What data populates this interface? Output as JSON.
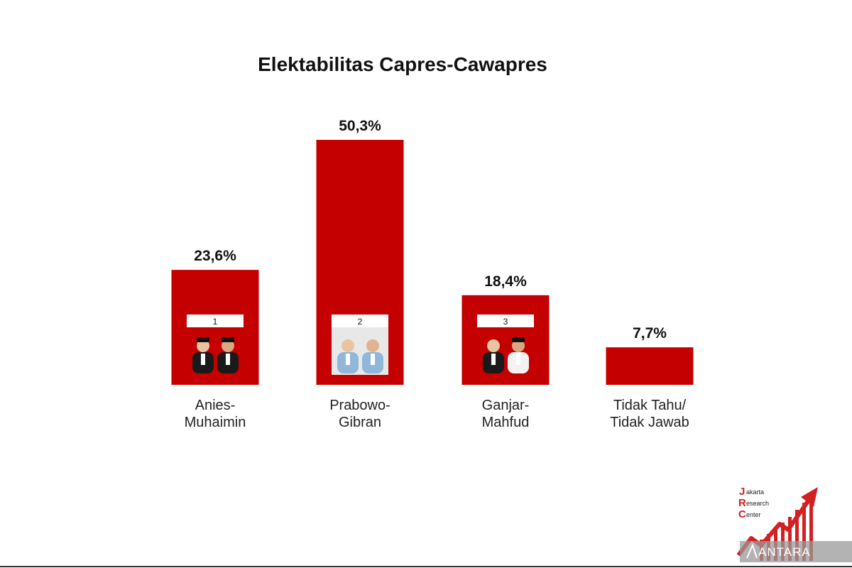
{
  "chart_data": {
    "type": "bar",
    "title": "Elektabilitas Capres-Cawapres",
    "xlabel": "",
    "ylabel": "",
    "ylim": [
      0,
      55
    ],
    "grid": false,
    "legend": "none",
    "categories": [
      [
        "Anies-",
        "Muhaimin"
      ],
      [
        "Prabowo-",
        "Gibran"
      ],
      [
        "Ganjar-",
        "Mahfud"
      ],
      [
        "Tidak Tahu/",
        "Tidak Jawab"
      ]
    ],
    "values": [
      23.6,
      50.3,
      18.4,
      7.7
    ],
    "value_labels": [
      "23,6%",
      "50,3%",
      "18,4%",
      "7,7%"
    ],
    "candidate_numbers": [
      "1",
      "2",
      "3",
      ""
    ],
    "bar_color": "#c40000"
  },
  "logo": {
    "letters": [
      "J",
      "R",
      "C"
    ],
    "words": [
      "akarta",
      "esearch",
      "enter"
    ],
    "color": "#d32020"
  },
  "watermark": "ANTARA"
}
